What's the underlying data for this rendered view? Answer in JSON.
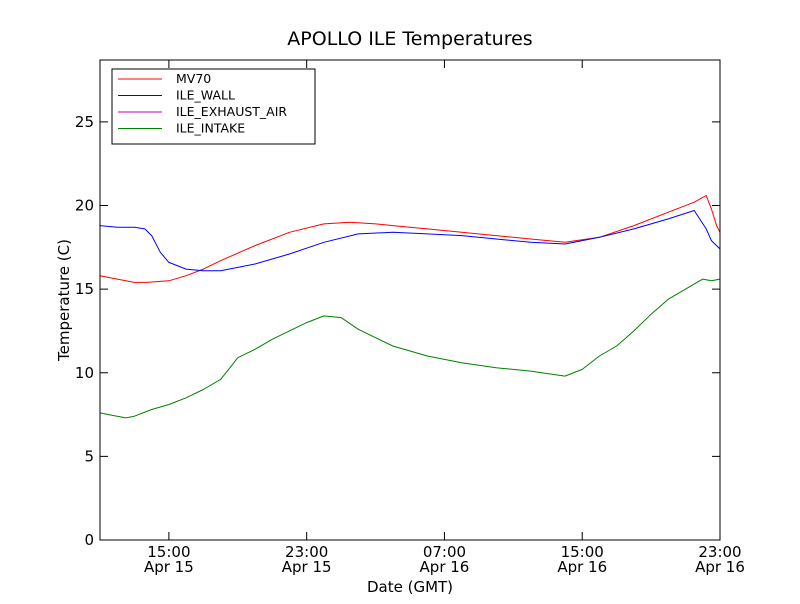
{
  "chart_data": {
    "type": "line",
    "title": "APOLLO ILE Temperatures",
    "xlabel": "Date (GMT)",
    "ylabel": "Temperature (C)",
    "xlim": [
      11.0,
      47.0
    ],
    "ylim": [
      0,
      28.7
    ],
    "grid": false,
    "legend_position": "top-left",
    "x_ticks": [
      {
        "x": 15,
        "line1": "15:00",
        "line2": "Apr 15"
      },
      {
        "x": 23,
        "line1": "23:00",
        "line2": "Apr 15"
      },
      {
        "x": 31,
        "line1": "07:00",
        "line2": "Apr 16"
      },
      {
        "x": 39,
        "line1": "15:00",
        "line2": "Apr 16"
      },
      {
        "x": 47,
        "line1": "23:00",
        "line2": "Apr 16"
      }
    ],
    "y_ticks": [
      0,
      5,
      10,
      15,
      20,
      25
    ],
    "series": [
      {
        "name": "MV70",
        "color": "#ff0000",
        "x": [
          11.0,
          12.0,
          13.0,
          13.7,
          15.0,
          16.0,
          17.0,
          18.0,
          20.0,
          22.0,
          24.0,
          25.5,
          27.0,
          28.0,
          30.0,
          32.0,
          34.0,
          36.0,
          38.0,
          40.0,
          42.0,
          44.0,
          45.5,
          46.2,
          46.5,
          46.8,
          47.0
        ],
        "values": [
          15.8,
          15.6,
          15.4,
          15.4,
          15.5,
          15.8,
          16.2,
          16.7,
          17.6,
          18.4,
          18.9,
          19.0,
          18.9,
          18.8,
          18.6,
          18.4,
          18.2,
          18.0,
          17.8,
          18.1,
          18.8,
          19.6,
          20.2,
          20.6,
          19.8,
          18.8,
          18.4
        ]
      },
      {
        "name": "ILE_WALL",
        "color": "#0000ff",
        "x": [
          11.0,
          12.0,
          13.0,
          13.6,
          14.0,
          14.5,
          15.0,
          16.0,
          17.0,
          18.0,
          20.0,
          22.0,
          24.0,
          26.0,
          28.0,
          30.0,
          32.0,
          34.0,
          36.0,
          38.0,
          40.0,
          42.0,
          44.0,
          45.5,
          46.2,
          46.5,
          46.8,
          47.0
        ],
        "values": [
          18.8,
          18.7,
          18.7,
          18.6,
          18.2,
          17.2,
          16.6,
          16.2,
          16.1,
          16.1,
          16.5,
          17.1,
          17.8,
          18.3,
          18.4,
          18.3,
          18.2,
          18.0,
          17.8,
          17.7,
          18.1,
          18.6,
          19.2,
          19.7,
          18.6,
          17.9,
          17.6,
          17.4
        ]
      },
      {
        "name": "ILE_EXHAUST_AIR",
        "color": "#bf00bf",
        "x": [],
        "values": []
      },
      {
        "name": "ILE_INTAKE",
        "color": "#008000",
        "x": [
          11.0,
          11.5,
          12.0,
          12.5,
          13.0,
          14.0,
          15.0,
          16.0,
          17.0,
          18.0,
          18.7,
          19.0,
          20.0,
          21.0,
          22.0,
          23.0,
          24.0,
          25.0,
          26.0,
          28.0,
          30.0,
          32.0,
          34.0,
          36.0,
          38.0,
          39.0,
          40.0,
          41.0,
          42.0,
          43.0,
          44.0,
          45.0,
          46.0,
          46.5,
          47.0
        ],
        "values": [
          7.6,
          7.5,
          7.4,
          7.3,
          7.4,
          7.8,
          8.1,
          8.5,
          9.0,
          9.6,
          10.5,
          10.9,
          11.4,
          12.0,
          12.5,
          13.0,
          13.4,
          13.3,
          12.6,
          11.6,
          11.0,
          10.6,
          10.3,
          10.1,
          9.8,
          10.2,
          11.0,
          11.6,
          12.5,
          13.5,
          14.4,
          15.0,
          15.6,
          15.5,
          15.6
        ]
      }
    ]
  }
}
